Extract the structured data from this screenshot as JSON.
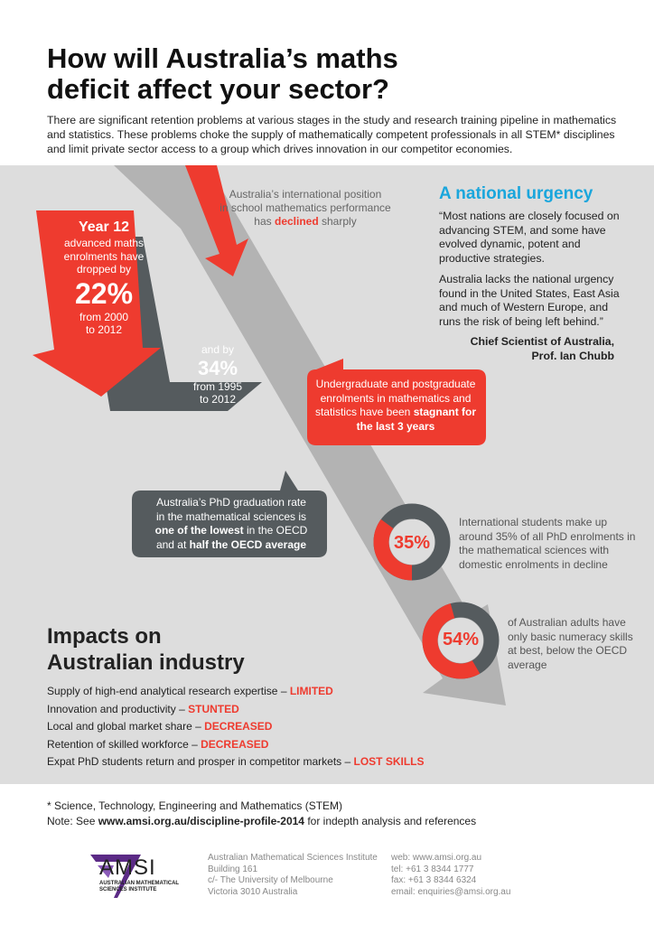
{
  "title_lines": [
    "How will Australia’s maths",
    "deficit affect your sector?"
  ],
  "intro": "There are significant retention problems at various stages in the study and research training pipeline in mathematics and statistics. These problems choke the supply of mathematically competent professionals in all STEM* disciplines and limit private sector access to a group which drives innovation in our competitor economies.",
  "ranking": {
    "line1": "Australia’s international position",
    "line2": "in school mathematics performance",
    "line3_pre": "has ",
    "line3_em": "declined",
    "line3_post": " sharply"
  },
  "urgency": {
    "title": "A national urgency",
    "quote1": "“Most nations are closely focused on advancing STEM, and some have evolved dynamic, potent and productive strategies.",
    "quote2": "Australia lacks the national urgency found in the United States, East Asia and much of Western Europe, and runs the risk of being left behind.”",
    "attrib1": "Chief Scientist of Australia,",
    "attrib2": "Prof. Ian Chubb"
  },
  "year12": {
    "head": "Year 12",
    "l1": "advanced maths",
    "l2": "enrolments have",
    "l3": "dropped by",
    "big": "22%",
    "l4": "from 2000",
    "l5": "to 2012"
  },
  "by34": {
    "l1": "and by",
    "big": "34%",
    "l2": "from 1995",
    "l3": "to 2012"
  },
  "ugpg": {
    "l1": "Undergraduate and postgraduate",
    "l2": "enrolments in mathematics and",
    "l3_pre": "statistics have been ",
    "l3_em": "stagnant for",
    "l4_em": "the last 3 years"
  },
  "phd": {
    "l1": "Australia’s PhD graduation rate",
    "l2": "in the mathematical sciences is",
    "l3_em": "one of the lowest",
    "l3_post": " in the OECD",
    "l4_pre": "and at ",
    "l4_em": "half the OECD average"
  },
  "intl": {
    "pct_label": "35%",
    "pct": 35,
    "text": "International students make up around 35% of all PhD enrolments in the mathematical sciences with domestic enrolments in decline"
  },
  "adults": {
    "pct_label": "54%",
    "pct": 54,
    "text": "of Australian adults have only basic numeracy skills at best, below the OECD average"
  },
  "impacts": {
    "title_l1": "Impacts on",
    "title_l2": "Australian industry",
    "items": [
      {
        "text": "Supply of high-end analytical research expertise – ",
        "impact": "LIMITED"
      },
      {
        "text": "Innovation and productivity – ",
        "impact": "STUNTED"
      },
      {
        "text": "Local and global market share – ",
        "impact": "DECREASED"
      },
      {
        "text": "Retention of skilled workforce – ",
        "impact": "DECREASED"
      },
      {
        "text": "Expat PhD students return and prosper in competitor markets – ",
        "impact": "LOST SKILLS"
      }
    ]
  },
  "footnote": {
    "stem": "* Science, Technology, Engineering and Mathematics (STEM)",
    "note_pre": "Note: See ",
    "note_link": "www.amsi.org.au/discipline-profile-2014",
    "note_post": " for indepth analysis and references"
  },
  "logo": {
    "name": "AMSI",
    "sub1": "AUSTRALIAN MATHEMATICAL",
    "sub2": "SCIENCES INSTITUTE"
  },
  "address": [
    "Australian Mathematical Sciences Institute",
    "Building 161",
    "c/- The University of Melbourne",
    "Victoria 3010 Australia"
  ],
  "contact": [
    "web: www.amsi.org.au",
    "tel: +61 3 8344 1777",
    "fax: +61 3 8344 6324",
    "email: enquiries@amsi.org.au"
  ],
  "colors": {
    "accent_red": "#ee3b2f",
    "accent_blue": "#1aa6dc",
    "dark_gray": "#555b5e",
    "arrow_gray": "#b3b3b3",
    "panel_bg": "#dddddd",
    "logo_purple": "#5b2a86"
  }
}
